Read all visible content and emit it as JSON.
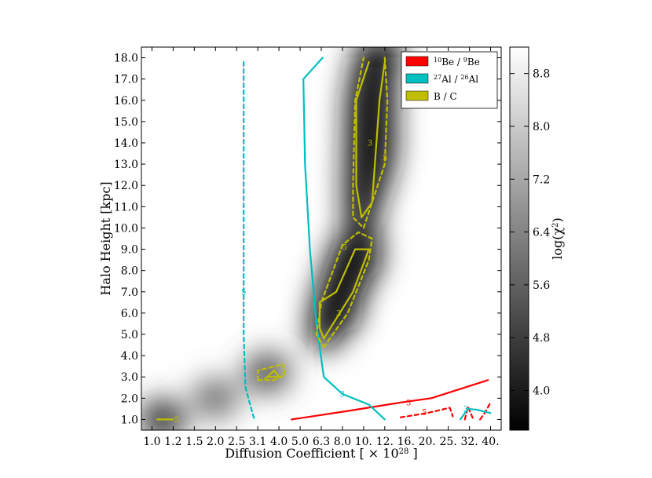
{
  "chart_data": {
    "type": "heatmap",
    "xlabel_main": "Diffusion Coefficient [ × 10",
    "xlabel_exp": "28",
    "xlabel_tail": " ]",
    "ylabel": "Halo Height [kpc]",
    "x_ticks": [
      "1.0",
      "1.2",
      "1.5",
      "2.0",
      "2.5",
      "3.1",
      "4.0",
      "5.0",
      "6.3",
      "8.0",
      "10.",
      "12.",
      "16.",
      "20.",
      "25.",
      "32.",
      "40."
    ],
    "y_ticks": [
      "1.0",
      "2.0",
      "3.0",
      "4.0",
      "5.0",
      "6.0",
      "7.0",
      "8.0",
      "9.0",
      "10.0",
      "11.0",
      "12.0",
      "13.0",
      "14.0",
      "15.0",
      "16.0",
      "17.0",
      "18.0"
    ],
    "colorbar": {
      "label": "log(χ²)",
      "label_main": "log(χ",
      "label_sup": "2",
      "label_tail": ")",
      "ticks": [
        "8.8",
        "8.0",
        "7.2",
        "6.4",
        "5.6",
        "4.8",
        "4.0"
      ],
      "tick_values": [
        8.8,
        8.0,
        7.2,
        6.4,
        5.6,
        4.8,
        4.0
      ],
      "range": [
        3.4,
        9.2
      ]
    },
    "legend": [
      {
        "pre": "",
        "sup1": "10",
        "mid": "Be / ",
        "sup2": "9",
        "post": "Be",
        "color": "#ff0000"
      },
      {
        "pre": "",
        "sup1": "27",
        "mid": "Al / ",
        "sup2": "26",
        "post": "Al",
        "color": "#00bfbf"
      },
      {
        "pre": "B / C",
        "sup1": "",
        "mid": "",
        "sup2": "",
        "post": "",
        "color": "#bfbf00"
      }
    ],
    "contour_levels": [
      "3",
      "5"
    ],
    "series": [
      {
        "name": "10Be / 9Be",
        "color": "#ff0000",
        "level": "3",
        "style": "solid",
        "points": [
          [
            4.6,
            1.0
          ],
          [
            8.5,
            1.4
          ],
          [
            15,
            1.8
          ],
          [
            21,
            2.0
          ],
          [
            39,
            2.85
          ]
        ]
      },
      {
        "name": "10Be / 9Be",
        "color": "#ff0000",
        "level": "5",
        "style": "dashed",
        "points": [
          [
            15,
            1.1
          ],
          [
            20,
            1.3
          ],
          [
            25.5,
            1.55
          ],
          [
            26.5,
            1.15
          ]
        ]
      },
      {
        "name": "10Be / 9Be",
        "color": "#ff0000",
        "level": "5",
        "style": "dashed",
        "points": [
          [
            30.5,
            1.0
          ],
          [
            31.5,
            1.6
          ],
          [
            33.5,
            1.0
          ]
        ]
      },
      {
        "name": "10Be / 9Be",
        "color": "#ff0000",
        "level": "5",
        "style": "dashed",
        "points": [
          [
            36,
            1.0
          ],
          [
            38,
            1.35
          ],
          [
            40,
            1.8
          ]
        ]
      },
      {
        "name": "27Al / 26Al",
        "color": "#00bfbf",
        "level": "3",
        "style": "solid",
        "points": [
          [
            6.4,
            18.0
          ],
          [
            5.2,
            17.0
          ],
          [
            5.3,
            13.0
          ],
          [
            5.6,
            9.0
          ],
          [
            6.0,
            5.5
          ],
          [
            6.5,
            3.0
          ],
          [
            8.0,
            2.2
          ],
          [
            10.5,
            1.7
          ],
          [
            12,
            1.0
          ]
        ]
      },
      {
        "name": "27Al / 26Al",
        "color": "#00bfbf",
        "level": "3",
        "style": "solid",
        "points": [
          [
            29,
            1.0
          ],
          [
            31.5,
            1.5
          ],
          [
            35,
            1.45
          ],
          [
            40,
            1.3
          ]
        ]
      },
      {
        "name": "27Al / 26Al",
        "color": "#00bfbf",
        "level": "5",
        "style": "dashed",
        "points": [
          [
            2.7,
            17.8
          ],
          [
            2.7,
            12.0
          ],
          [
            2.7,
            5.0
          ],
          [
            2.75,
            2.5
          ],
          [
            3.0,
            1.0
          ]
        ]
      },
      {
        "name": "B / C",
        "color": "#bfbf00",
        "level": "3",
        "style": "solid",
        "points": [
          [
            10.5,
            17.8
          ],
          [
            9.3,
            16.0
          ],
          [
            9.3,
            12.0
          ],
          [
            9.8,
            10.5
          ],
          [
            10.8,
            11.2
          ],
          [
            11.5,
            16.0
          ],
          [
            12.0,
            17.8
          ]
        ]
      },
      {
        "name": "B / C",
        "color": "#bfbf00",
        "level": "5",
        "style": "dashed",
        "points": [
          [
            12.0,
            18.0
          ],
          [
            12.5,
            16.0
          ],
          [
            12.0,
            13.0
          ],
          [
            10.0,
            10.0
          ],
          [
            9.0,
            10.5
          ],
          [
            9.0,
            12.0
          ],
          [
            9.2,
            16.0
          ],
          [
            10.0,
            18.0
          ]
        ]
      },
      {
        "name": "B / C",
        "color": "#bfbf00",
        "level": "3",
        "style": "solid",
        "points": [
          [
            6.2,
            5.3
          ],
          [
            6.5,
            4.8
          ],
          [
            9.0,
            7.0
          ],
          [
            10.5,
            9.0
          ],
          [
            9.2,
            9.0
          ],
          [
            7.5,
            7.0
          ],
          [
            6.2,
            6.5
          ],
          [
            6.2,
            5.3
          ]
        ]
      },
      {
        "name": "B / C",
        "color": "#bfbf00",
        "level": "5",
        "style": "dashed",
        "points": [
          [
            6.5,
            4.4
          ],
          [
            8.5,
            6.0
          ],
          [
            10.5,
            8.5
          ],
          [
            10.8,
            9.5
          ],
          [
            9.5,
            9.8
          ],
          [
            8.0,
            9.2
          ],
          [
            6.3,
            6.5
          ],
          [
            6.0,
            5.0
          ],
          [
            6.5,
            4.4
          ]
        ]
      },
      {
        "name": "B / C",
        "color": "#bfbf00",
        "level": "3",
        "style": "solid",
        "points": [
          [
            3.4,
            2.9
          ],
          [
            3.8,
            3.3
          ],
          [
            4.0,
            3.0
          ],
          [
            3.5,
            3.0
          ]
        ]
      },
      {
        "name": "B / C",
        "color": "#bfbf00",
        "level": "5",
        "style": "dashed",
        "points": [
          [
            3.1,
            2.85
          ],
          [
            3.1,
            3.3
          ],
          [
            4.2,
            3.6
          ],
          [
            4.3,
            3.1
          ],
          [
            3.8,
            2.85
          ],
          [
            3.1,
            2.85
          ]
        ]
      },
      {
        "name": "B / C",
        "color": "#bfbf00",
        "level": "3",
        "style": "solid",
        "points": [
          [
            1.05,
            1.0
          ],
          [
            1.2,
            1.0
          ]
        ]
      }
    ],
    "contour_labels": [
      {
        "text": "3",
        "color": "#bfbf00",
        "x": 10.6,
        "y": 14.0
      },
      {
        "text": "5",
        "color": "#bfbf00",
        "x": 12.1,
        "y": 13.3
      },
      {
        "text": "5",
        "color": "#bfbf00",
        "x": 8.2,
        "y": 9.1
      },
      {
        "text": "3",
        "color": "#bfbf00",
        "x": 7.7,
        "y": 6.0
      },
      {
        "text": "5",
        "color": "#bfbf00",
        "x": 4.2,
        "y": 3.3
      },
      {
        "text": "5",
        "color": "#bfbf00",
        "x": 1.25,
        "y": 1.0
      },
      {
        "text": "5",
        "color": "#00bfbf",
        "x": 2.7,
        "y": 7.0
      },
      {
        "text": "3",
        "color": "#00bfbf",
        "x": 8.0,
        "y": 2.2
      },
      {
        "text": "3",
        "color": "#ff0000",
        "x": 16.5,
        "y": 1.8
      },
      {
        "text": "5",
        "color": "#ff0000",
        "x": 19.5,
        "y": 1.35
      },
      {
        "text": "3",
        "color": "#00bfbf",
        "x": 30.8,
        "y": 1.5
      }
    ],
    "heatmap_minima": [
      {
        "x": 11.5,
        "y": 18.0,
        "v": 3.4
      },
      {
        "x": 11.0,
        "y": 14.0,
        "v": 3.8
      },
      {
        "x": 9.5,
        "y": 8.5,
        "v": 3.6
      },
      {
        "x": 7.5,
        "y": 6.0,
        "v": 3.8
      },
      {
        "x": 3.5,
        "y": 3.2,
        "v": 5.2
      },
      {
        "x": 2.0,
        "y": 2.0,
        "v": 6.0
      },
      {
        "x": 1.1,
        "y": 1.0,
        "v": 4.5
      }
    ]
  }
}
